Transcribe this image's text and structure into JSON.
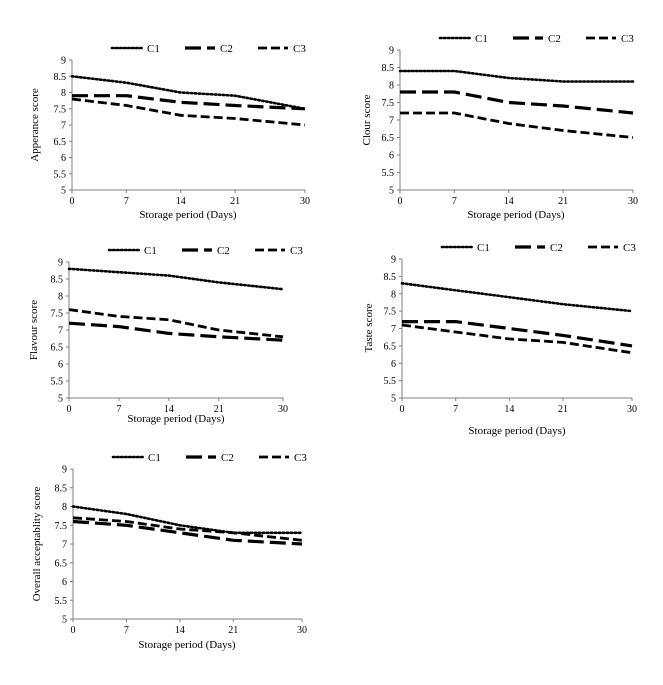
{
  "chart_data": [
    {
      "type": "line",
      "x": [
        0,
        7,
        14,
        21,
        30
      ],
      "x_tick_labels": [
        "0",
        "7",
        "14",
        "21",
        "30"
      ],
      "xlabel": "Storage period (Days)",
      "ylabel": "Apperance score",
      "ylim": [
        5,
        9
      ],
      "y_tick_labels": [
        "5",
        "5.5",
        "6",
        "6.5",
        "7",
        "7.5",
        "8",
        "8.5",
        "9"
      ],
      "grid": false,
      "legend_position": "top",
      "series": [
        {
          "name": "C1",
          "values": [
            8.5,
            8.3,
            8.0,
            7.9,
            7.5
          ],
          "dash": "dotted",
          "color": "#000000"
        },
        {
          "name": "C2",
          "values": [
            7.9,
            7.9,
            7.7,
            7.6,
            7.5
          ],
          "dash": "long-dash",
          "color": "#000000"
        },
        {
          "name": "C3",
          "values": [
            7.8,
            7.6,
            7.3,
            7.2,
            7.0
          ],
          "dash": "dash",
          "color": "#000000"
        }
      ]
    },
    {
      "type": "line",
      "x": [
        0,
        7,
        14,
        21,
        30
      ],
      "x_tick_labels": [
        "0",
        "7",
        "14",
        "21",
        "30"
      ],
      "xlabel": "Storage period (Days)",
      "ylabel": "Clour score",
      "ylim": [
        5,
        9
      ],
      "y_tick_labels": [
        "5",
        "5.5",
        "6",
        "6.5",
        "7",
        "7.5",
        "8",
        "8.5",
        "9"
      ],
      "grid": false,
      "legend_position": "top",
      "series": [
        {
          "name": "C1",
          "values": [
            8.4,
            8.4,
            8.2,
            8.1,
            8.1
          ],
          "dash": "dotted",
          "color": "#000000"
        },
        {
          "name": "C2",
          "values": [
            7.8,
            7.8,
            7.5,
            7.4,
            7.2
          ],
          "dash": "long-dash",
          "color": "#000000"
        },
        {
          "name": "C3",
          "values": [
            7.2,
            7.2,
            6.9,
            6.7,
            6.5
          ],
          "dash": "dash",
          "color": "#000000"
        }
      ]
    },
    {
      "type": "line",
      "x": [
        0,
        7,
        14,
        21,
        30
      ],
      "x_tick_labels": [
        "0",
        "7",
        "14",
        "21",
        "30"
      ],
      "xlabel": "Storage period (Days)",
      "ylabel": "Flavour score",
      "ylim": [
        5,
        9
      ],
      "y_tick_labels": [
        "5",
        "5.5",
        "6",
        "6.5",
        "7",
        "7.5",
        "8",
        "8.5",
        "9"
      ],
      "grid": false,
      "legend_position": "top",
      "series": [
        {
          "name": "C1",
          "values": [
            8.8,
            8.7,
            8.6,
            8.4,
            8.2
          ],
          "dash": "dotted",
          "color": "#000000"
        },
        {
          "name": "C2",
          "values": [
            7.2,
            7.1,
            6.9,
            6.8,
            6.7
          ],
          "dash": "long-dash",
          "color": "#000000"
        },
        {
          "name": "C3",
          "values": [
            7.6,
            7.4,
            7.3,
            7.0,
            6.8
          ],
          "dash": "dash",
          "color": "#000000"
        }
      ]
    },
    {
      "type": "line",
      "x": [
        0,
        7,
        14,
        21,
        30
      ],
      "x_tick_labels": [
        "0",
        "7",
        "14",
        "21",
        "30"
      ],
      "xlabel": "Storage period (Days)",
      "ylabel": "Taste score",
      "ylim": [
        5,
        9
      ],
      "y_tick_labels": [
        "5",
        "5.5",
        "6",
        "6.5",
        "7",
        "7.5",
        "8",
        "8.5",
        "9"
      ],
      "grid": false,
      "legend_position": "top",
      "series": [
        {
          "name": "C1",
          "values": [
            8.3,
            8.1,
            7.9,
            7.7,
            7.5
          ],
          "dash": "dotted",
          "color": "#000000"
        },
        {
          "name": "C2",
          "values": [
            7.2,
            7.2,
            7.0,
            6.8,
            6.5
          ],
          "dash": "long-dash",
          "color": "#000000"
        },
        {
          "name": "C3",
          "values": [
            7.1,
            6.9,
            6.7,
            6.6,
            6.3
          ],
          "dash": "dash",
          "color": "#000000"
        }
      ]
    },
    {
      "type": "line",
      "x": [
        0,
        7,
        14,
        21,
        30
      ],
      "x_tick_labels": [
        "0",
        "7",
        "14",
        "21",
        "30"
      ],
      "xlabel": "Storage period (Days)",
      "ylabel": "Overall acceptablity score",
      "ylim": [
        5,
        9
      ],
      "y_tick_labels": [
        "5",
        "5.5",
        "6",
        "6.5",
        "7",
        "7.5",
        "8",
        "8.5",
        "9"
      ],
      "grid": false,
      "legend_position": "top",
      "series": [
        {
          "name": "C1",
          "values": [
            8.0,
            7.8,
            7.5,
            7.3,
            7.3
          ],
          "dash": "dotted",
          "color": "#000000"
        },
        {
          "name": "C2",
          "values": [
            7.6,
            7.5,
            7.3,
            7.1,
            7.0
          ],
          "dash": "long-dash",
          "color": "#000000"
        },
        {
          "name": "C3",
          "values": [
            7.7,
            7.6,
            7.4,
            7.3,
            7.1
          ],
          "dash": "dash",
          "color": "#000000"
        }
      ]
    }
  ]
}
